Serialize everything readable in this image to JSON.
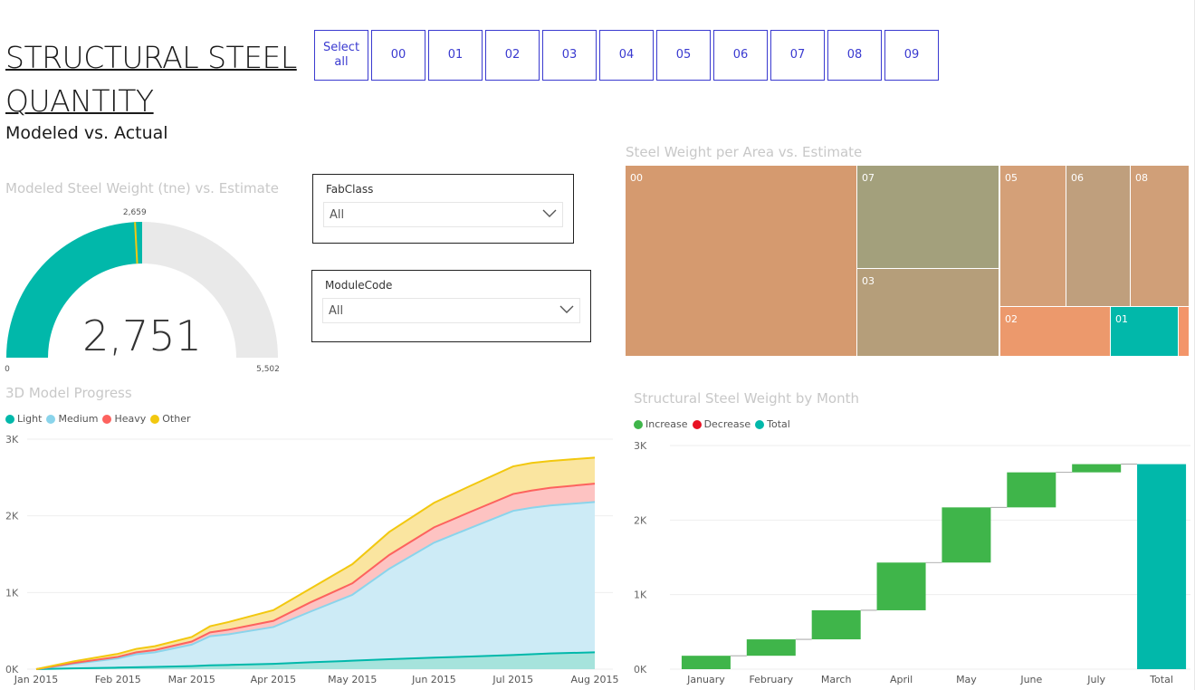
{
  "header": {
    "title_line1": "STRUCTURAL STEEL",
    "title_line2": "QUANTITY",
    "subtitle": "Modeled vs. Actual"
  },
  "area_slicer": {
    "buttons": [
      "Select all",
      "00",
      "01",
      "02",
      "03",
      "04",
      "05",
      "06",
      "07",
      "08",
      "09"
    ]
  },
  "fabclass": {
    "label": "FabClass",
    "value": "All"
  },
  "modulecode": {
    "label": "ModuleCode",
    "value": "All"
  },
  "gauge": {
    "title": "Modeled Steel Weight (tne) vs. Estimate",
    "value_label": "2,751",
    "target_label": "2,659",
    "min_label": "0",
    "max_label": "5,502"
  },
  "colors": {
    "teal": "#01b8aa",
    "light_blue": "#8ad4eb",
    "red": "#fd625e",
    "yellow": "#f2c80f",
    "green": "#3fb54a",
    "decrease": "#e81123",
    "track": "#e9e9e9"
  },
  "chart_data": [
    {
      "type": "gauge",
      "title": "Modeled Steel Weight (tne) vs. Estimate",
      "value": 2751,
      "target": 2659,
      "min": 0,
      "max": 5502
    },
    {
      "type": "treemap",
      "title": "Steel Weight per Area vs. Estimate",
      "items": [
        {
          "label": "00",
          "color": "#d59a6f"
        },
        {
          "label": "07",
          "color": "#a3a07c"
        },
        {
          "label": "03",
          "color": "#b59e7a"
        },
        {
          "label": "05",
          "color": "#d4a078"
        },
        {
          "label": "06",
          "color": "#bf9f7d"
        },
        {
          "label": "08",
          "color": "#d09f78"
        },
        {
          "label": "02",
          "color": "#ec996c"
        },
        {
          "label": "01",
          "color": "#01b8aa"
        },
        {
          "label": "",
          "color": "#f3956a"
        }
      ]
    },
    {
      "type": "area",
      "title": "3D Model Progress",
      "legend": [
        "Light",
        "Medium",
        "Heavy",
        "Other"
      ],
      "x": [
        "2015-01-01",
        "2015-01-15",
        "2015-02-01",
        "2015-02-08",
        "2015-02-15",
        "2015-03-01",
        "2015-03-08",
        "2015-03-15",
        "2015-04-01",
        "2015-04-15",
        "2015-05-01",
        "2015-05-15",
        "2015-06-01",
        "2015-06-15",
        "2015-07-01",
        "2015-07-08",
        "2015-07-15",
        "2015-08-01"
      ],
      "x_ticks": [
        "Jan 2015",
        "Feb 2015",
        "Mar 2015",
        "Apr 2015",
        "May 2015",
        "Jun 2015",
        "Jul 2015",
        "Aug 2015"
      ],
      "y_ticks": [
        "0K",
        "1K",
        "2K",
        "3K"
      ],
      "ylim": [
        0,
        3000
      ],
      "series": [
        {
          "name": "Light",
          "values": [
            0,
            10,
            20,
            25,
            30,
            40,
            50,
            55,
            70,
            90,
            110,
            130,
            150,
            165,
            185,
            195,
            205,
            220
          ]
        },
        {
          "name": "Medium",
          "values": [
            0,
            60,
            120,
            170,
            190,
            280,
            380,
            400,
            480,
            660,
            860,
            1180,
            1500,
            1680,
            1880,
            1910,
            1930,
            1960
          ]
        },
        {
          "name": "Heavy",
          "values": [
            0,
            10,
            20,
            25,
            30,
            40,
            50,
            60,
            80,
            120,
            150,
            180,
            200,
            210,
            220,
            225,
            230,
            240
          ]
        },
        {
          "name": "Other",
          "values": [
            0,
            20,
            40,
            45,
            50,
            60,
            80,
            100,
            140,
            180,
            250,
            300,
            320,
            340,
            360,
            360,
            350,
            340
          ]
        }
      ]
    },
    {
      "type": "waterfall",
      "title": "Structural Steel Weight by Month",
      "legend": [
        "Increase",
        "Decrease",
        "Total"
      ],
      "categories": [
        "January",
        "February",
        "March",
        "April",
        "May",
        "June",
        "July",
        "Total"
      ],
      "values": [
        180,
        220,
        390,
        640,
        740,
        470,
        110,
        2750
      ],
      "y_ticks": [
        "0K",
        "1K",
        "2K",
        "3K"
      ],
      "ylim": [
        0,
        3000
      ]
    }
  ]
}
